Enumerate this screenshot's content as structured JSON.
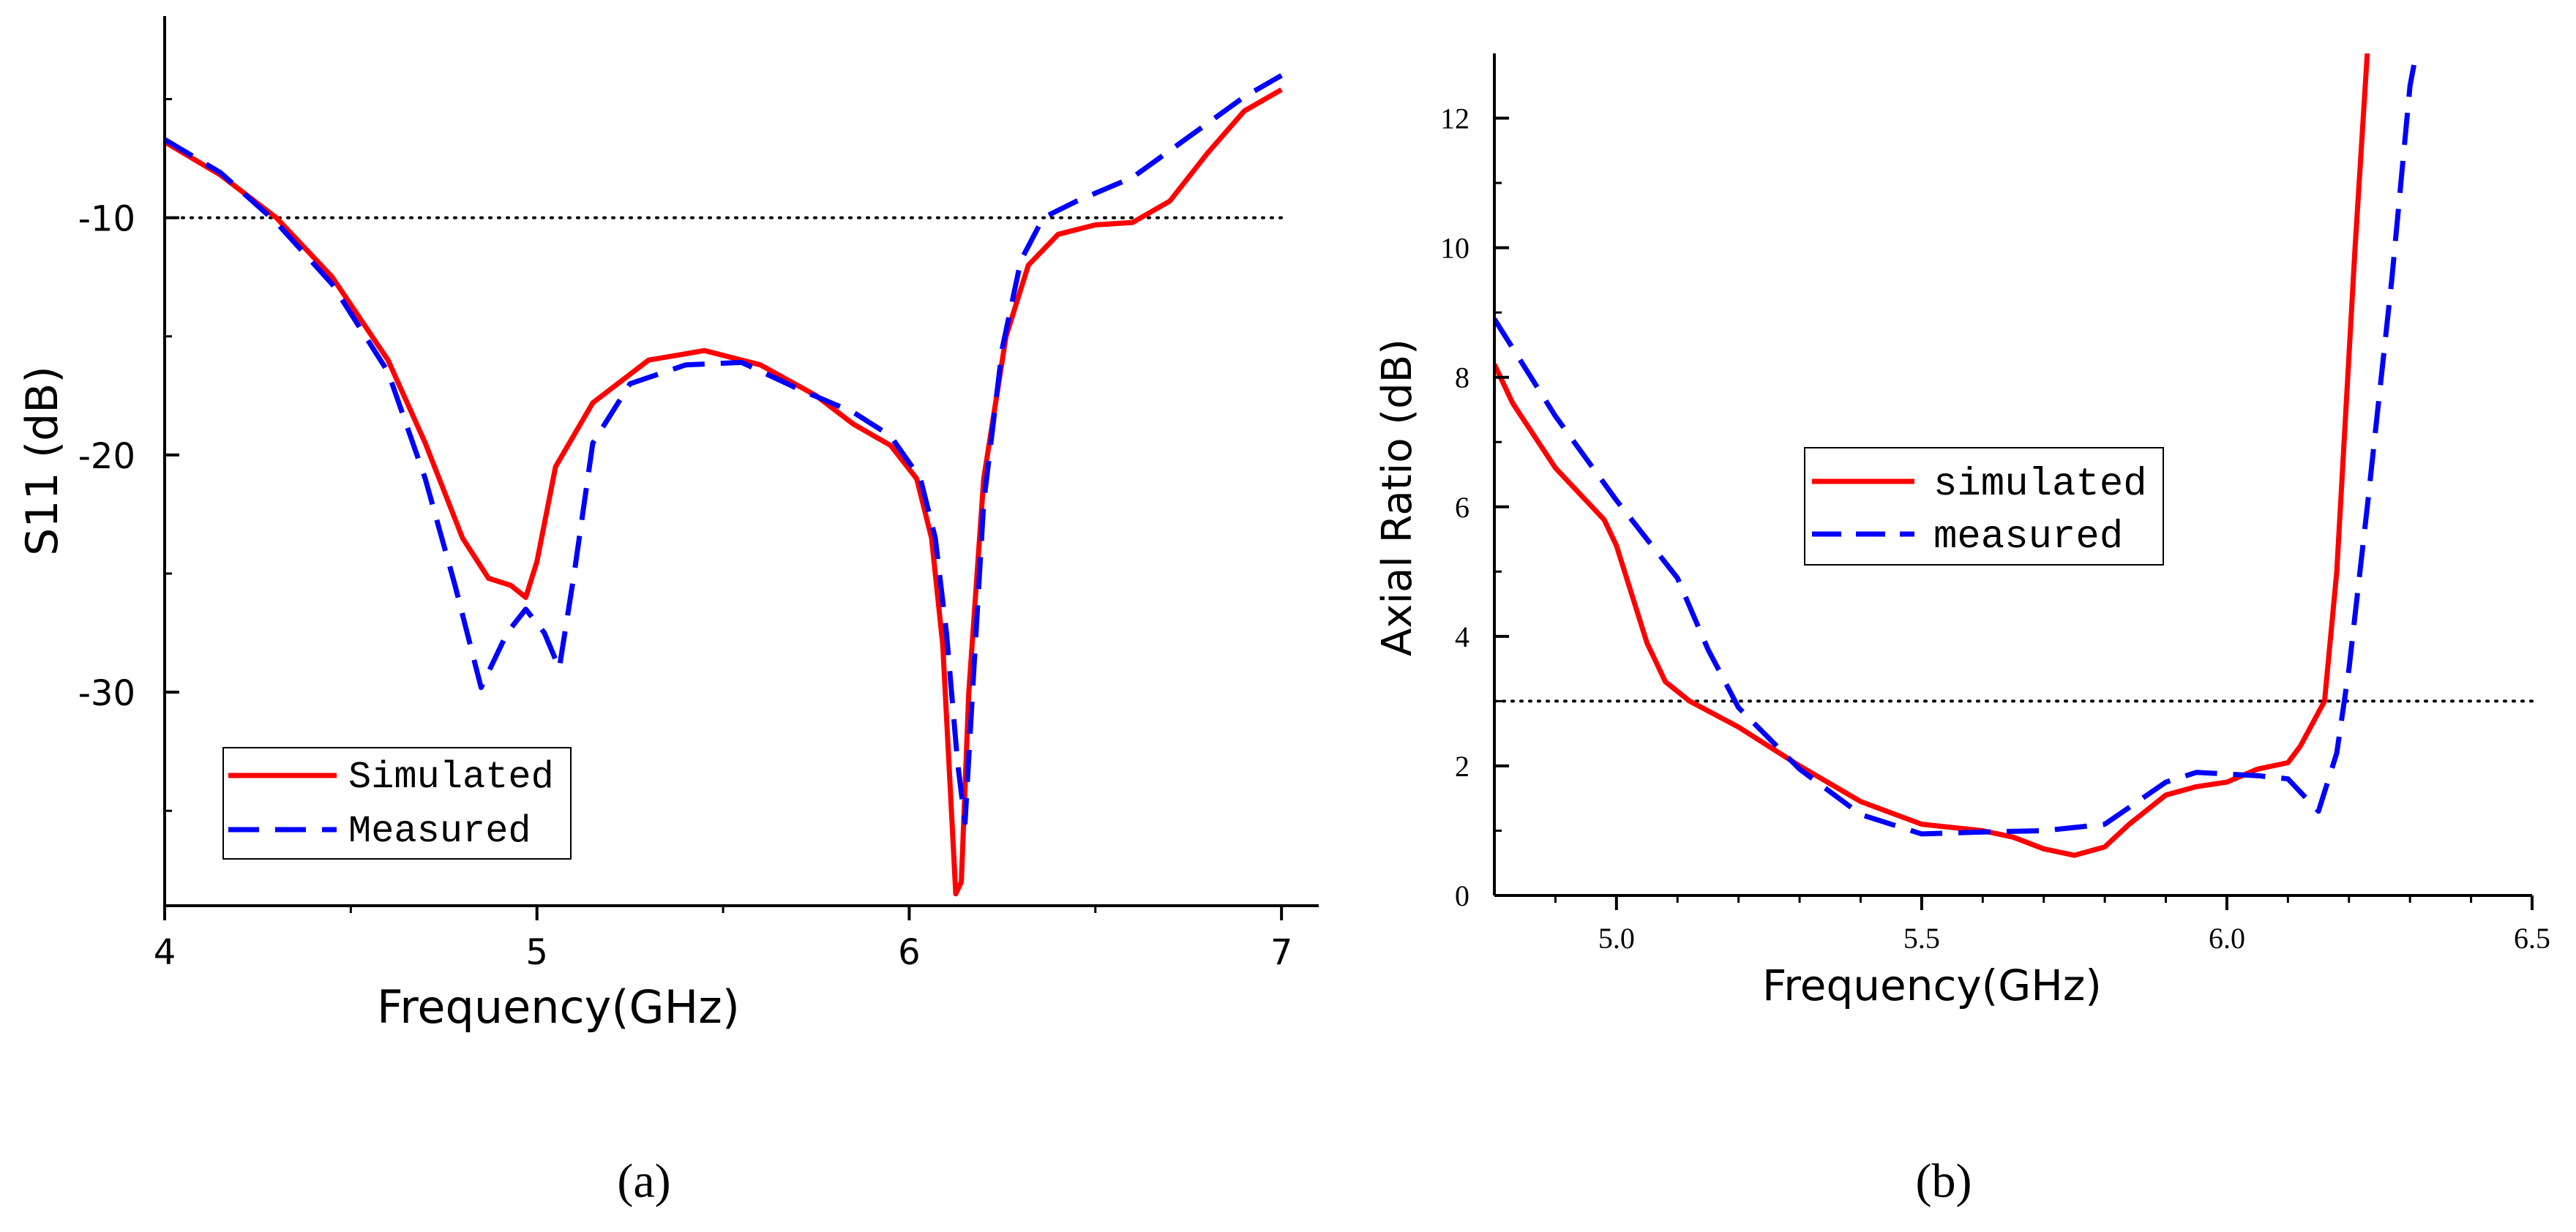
{
  "chart_data": [
    {
      "type": "line",
      "panel_label": "(a)",
      "xlabel": "Frequency(GHz)",
      "ylabel": "S11 (dB)",
      "xlim": [
        4,
        7.1
      ],
      "ylim": [
        -39,
        -1.5
      ],
      "xticks": [
        4,
        5,
        6,
        7
      ],
      "xtick_labels": [
        "4",
        "5",
        "6",
        "7"
      ],
      "yticks": [
        -10,
        -20,
        -30
      ],
      "ytick_labels": [
        "-10",
        "-20",
        "-30"
      ],
      "reference_line": {
        "y": -10,
        "style": "dotted"
      },
      "legend": {
        "position": "bottom-left",
        "entries": [
          "Simulated",
          "Measured"
        ]
      },
      "series": [
        {
          "name": "Simulated",
          "color": "#ff0000",
          "style": "solid",
          "points": [
            [
              4.0,
              -6.8
            ],
            [
              4.15,
              -8.2
            ],
            [
              4.3,
              -10.0
            ],
            [
              4.45,
              -12.5
            ],
            [
              4.6,
              -16.0
            ],
            [
              4.7,
              -19.5
            ],
            [
              4.8,
              -23.5
            ],
            [
              4.87,
              -25.2
            ],
            [
              4.93,
              -25.5
            ],
            [
              4.97,
              -26.0
            ],
            [
              5.0,
              -24.5
            ],
            [
              5.05,
              -20.5
            ],
            [
              5.15,
              -17.8
            ],
            [
              5.3,
              -16.0
            ],
            [
              5.45,
              -15.6
            ],
            [
              5.6,
              -16.2
            ],
            [
              5.75,
              -17.5
            ],
            [
              5.85,
              -18.7
            ],
            [
              5.95,
              -19.6
            ],
            [
              6.02,
              -21.0
            ],
            [
              6.06,
              -23.5
            ],
            [
              6.09,
              -28.0
            ],
            [
              6.11,
              -34.0
            ],
            [
              6.125,
              -38.5
            ],
            [
              6.14,
              -38.0
            ],
            [
              6.16,
              -30.0
            ],
            [
              6.2,
              -21.0
            ],
            [
              6.26,
              -15.0
            ],
            [
              6.32,
              -12.0
            ],
            [
              6.4,
              -10.7
            ],
            [
              6.5,
              -10.3
            ],
            [
              6.6,
              -10.2
            ],
            [
              6.7,
              -9.3
            ],
            [
              6.8,
              -7.3
            ],
            [
              6.9,
              -5.5
            ],
            [
              7.0,
              -4.6
            ]
          ]
        },
        {
          "name": "Measured",
          "color": "#0000ff",
          "style": "dashed",
          "points": [
            [
              4.0,
              -6.7
            ],
            [
              4.15,
              -8.1
            ],
            [
              4.3,
              -10.2
            ],
            [
              4.45,
              -12.8
            ],
            [
              4.6,
              -16.5
            ],
            [
              4.7,
              -21.0
            ],
            [
              4.78,
              -25.5
            ],
            [
              4.85,
              -29.8
            ],
            [
              4.92,
              -27.5
            ],
            [
              4.97,
              -26.5
            ],
            [
              5.02,
              -27.5
            ],
            [
              5.06,
              -29.0
            ],
            [
              5.1,
              -25.0
            ],
            [
              5.15,
              -19.5
            ],
            [
              5.25,
              -17.0
            ],
            [
              5.4,
              -16.2
            ],
            [
              5.55,
              -16.1
            ],
            [
              5.7,
              -17.2
            ],
            [
              5.85,
              -18.2
            ],
            [
              5.95,
              -19.2
            ],
            [
              6.03,
              -21.0
            ],
            [
              6.07,
              -23.5
            ],
            [
              6.1,
              -27.5
            ],
            [
              6.13,
              -33.0
            ],
            [
              6.15,
              -35.5
            ],
            [
              6.17,
              -30.0
            ],
            [
              6.2,
              -22.0
            ],
            [
              6.25,
              -15.5
            ],
            [
              6.3,
              -11.8
            ],
            [
              6.36,
              -10.0
            ],
            [
              6.45,
              -9.3
            ],
            [
              6.6,
              -8.3
            ],
            [
              6.75,
              -6.6
            ],
            [
              6.9,
              -4.9
            ],
            [
              7.0,
              -4.0
            ]
          ]
        }
      ]
    },
    {
      "type": "line",
      "panel_label": "(b)",
      "xlabel": "Frequency(GHz)",
      "ylabel": "Axial Ratio (dB)",
      "xlim": [
        4.8,
        6.5
      ],
      "ylim": [
        0,
        13
      ],
      "xticks": [
        5.0,
        5.5,
        6.0,
        6.5
      ],
      "xtick_labels": [
        "5.0",
        "5.5",
        "6.0",
        "6.5"
      ],
      "yticks": [
        0,
        2,
        4,
        6,
        8,
        10,
        12
      ],
      "ytick_labels": [
        "0",
        "2",
        "4",
        "6",
        "8",
        "10",
        "12"
      ],
      "reference_line": {
        "y": 3,
        "style": "dotted"
      },
      "legend": {
        "position": "center",
        "entries": [
          "simulated",
          "measured"
        ]
      },
      "series": [
        {
          "name": "simulated",
          "color": "#ff0000",
          "style": "solid",
          "points": [
            [
              4.8,
              8.2
            ],
            [
              4.83,
              7.6
            ],
            [
              4.9,
              6.6
            ],
            [
              4.95,
              6.1
            ],
            [
              4.98,
              5.8
            ],
            [
              5.0,
              5.4
            ],
            [
              5.02,
              4.8
            ],
            [
              5.05,
              3.9
            ],
            [
              5.08,
              3.3
            ],
            [
              5.12,
              3.0
            ],
            [
              5.2,
              2.6
            ],
            [
              5.3,
              2.0
            ],
            [
              5.4,
              1.45
            ],
            [
              5.5,
              1.1
            ],
            [
              5.6,
              1.0
            ],
            [
              5.65,
              0.9
            ],
            [
              5.7,
              0.72
            ],
            [
              5.75,
              0.62
            ],
            [
              5.8,
              0.75
            ],
            [
              5.84,
              1.1
            ],
            [
              5.9,
              1.55
            ],
            [
              5.95,
              1.68
            ],
            [
              6.0,
              1.75
            ],
            [
              6.05,
              1.95
            ],
            [
              6.1,
              2.05
            ],
            [
              6.12,
              2.3
            ],
            [
              6.16,
              3.0
            ],
            [
              6.18,
              5.0
            ],
            [
              6.21,
              10.0
            ],
            [
              6.23,
              13.0
            ]
          ]
        },
        {
          "name": "measured",
          "color": "#0000ff",
          "style": "dashed",
          "points": [
            [
              4.8,
              8.9
            ],
            [
              4.9,
              7.4
            ],
            [
              5.0,
              6.1
            ],
            [
              5.1,
              4.9
            ],
            [
              5.15,
              3.8
            ],
            [
              5.2,
              2.9
            ],
            [
              5.3,
              1.95
            ],
            [
              5.4,
              1.25
            ],
            [
              5.5,
              0.95
            ],
            [
              5.6,
              0.98
            ],
            [
              5.7,
              1.0
            ],
            [
              5.8,
              1.1
            ],
            [
              5.9,
              1.75
            ],
            [
              5.95,
              1.9
            ],
            [
              6.05,
              1.85
            ],
            [
              6.1,
              1.8
            ],
            [
              6.15,
              1.3
            ],
            [
              6.18,
              2.2
            ],
            [
              6.2,
              3.5
            ],
            [
              6.23,
              6.0
            ],
            [
              6.27,
              9.5
            ],
            [
              6.3,
              12.5
            ],
            [
              6.31,
              13.0
            ]
          ]
        }
      ]
    }
  ]
}
